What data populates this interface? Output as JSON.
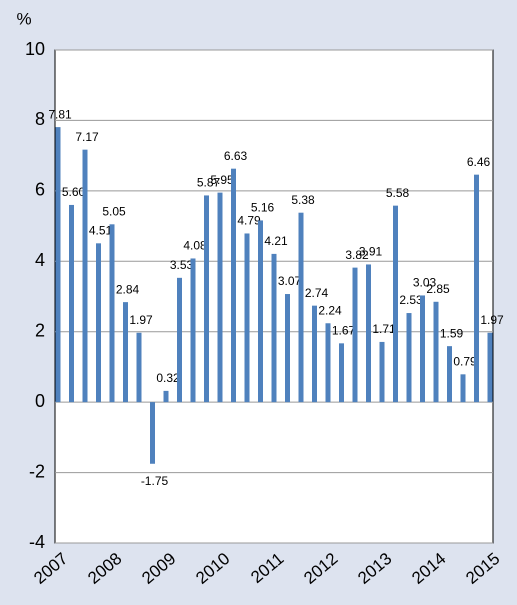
{
  "chart_data": {
    "type": "bar",
    "y_axis_label": "%",
    "categories": [
      "2007",
      null,
      null,
      null,
      "2008",
      null,
      null,
      null,
      "2009",
      null,
      null,
      null,
      "2010",
      null,
      null,
      null,
      "2011",
      null,
      null,
      null,
      "2012",
      null,
      null,
      null,
      "2013",
      null,
      null,
      null,
      "2014",
      null,
      null,
      null,
      "2015"
    ],
    "values": [
      7.81,
      5.6,
      7.17,
      4.51,
      5.05,
      2.84,
      1.97,
      -1.75,
      0.32,
      3.53,
      4.08,
      5.87,
      5.95,
      6.63,
      4.79,
      5.16,
      4.21,
      3.07,
      5.38,
      2.74,
      2.24,
      1.67,
      3.82,
      3.91,
      1.71,
      5.58,
      2.53,
      3.03,
      2.85,
      1.59,
      0.79,
      6.46,
      1.97
    ],
    "value_labels": [
      "7.81",
      "5.60",
      "7.17",
      "4.51",
      "5.05",
      "2.84",
      "1.97",
      "-1.75",
      "0.32",
      "3.53",
      "4.08",
      "5.87",
      "5.95",
      "6.63",
      "4.79",
      "5.16",
      "4.21",
      "3.07",
      "5.38",
      "2.74",
      "2.24",
      "1.67",
      "3.82",
      "3.91",
      "1.71",
      "5.58",
      "2.53",
      "3.03",
      "2.85",
      "1.59",
      "0.79",
      "6.46",
      "1.97"
    ],
    "color": "#4f81bd",
    "ylim": [
      -4,
      10
    ],
    "yticks": [
      -4,
      -2,
      0,
      2,
      4,
      6,
      8,
      10
    ],
    "grid": true
  }
}
